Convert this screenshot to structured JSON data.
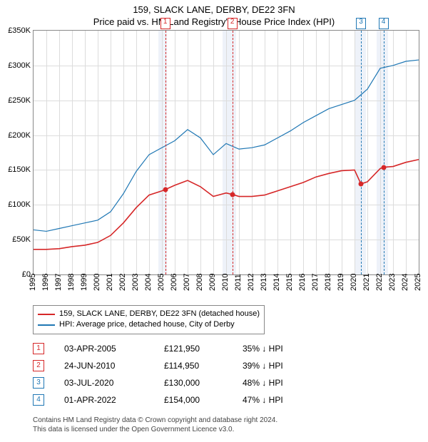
{
  "header": {
    "title": "159, SLACK LANE, DERBY, DE22 3FN",
    "subtitle": "Price paid vs. HM Land Registry's House Price Index (HPI)"
  },
  "chart": {
    "type": "line",
    "background_color": "#ffffff",
    "grid_color": "#dcdcdc",
    "axis_color": "#888888",
    "label_fontsize": 11,
    "y": {
      "min": 0,
      "max": 350000,
      "tick_step": 50000,
      "tick_labels": [
        "£0",
        "£50K",
        "£100K",
        "£150K",
        "£200K",
        "£250K",
        "£300K",
        "£350K"
      ]
    },
    "x": {
      "min": 1995,
      "max": 2025,
      "tick_step": 1,
      "tick_labels": [
        "1995",
        "1996",
        "1997",
        "1998",
        "1999",
        "2000",
        "2001",
        "2002",
        "2003",
        "2004",
        "2005",
        "2006",
        "2007",
        "2008",
        "2009",
        "2010",
        "2011",
        "2012",
        "2013",
        "2014",
        "2015",
        "2016",
        "2017",
        "2018",
        "2019",
        "2020",
        "2021",
        "2022",
        "2023",
        "2024",
        "2025"
      ]
    },
    "highlight_bands": [
      {
        "from": 2004.7,
        "to": 2005.4,
        "color": "#eef2f9"
      },
      {
        "from": 2009.7,
        "to": 2010.8,
        "color": "#eef2f9"
      },
      {
        "from": 2020.0,
        "to": 2020.9,
        "color": "#eef2f9"
      },
      {
        "from": 2021.7,
        "to": 2022.6,
        "color": "#eef2f9"
      }
    ],
    "series": [
      {
        "name": "property",
        "label": "159, SLACK LANE, DERBY, DE22 3FN (detached house)",
        "color": "#d62728",
        "line_width": 1.6,
        "points": [
          [
            1995,
            36000
          ],
          [
            1996,
            36000
          ],
          [
            1997,
            37000
          ],
          [
            1998,
            40000
          ],
          [
            1999,
            42000
          ],
          [
            2000,
            46000
          ],
          [
            2001,
            56000
          ],
          [
            2002,
            74000
          ],
          [
            2003,
            96000
          ],
          [
            2004,
            114000
          ],
          [
            2005,
            120000
          ],
          [
            2005.26,
            121950
          ],
          [
            2006,
            128000
          ],
          [
            2007,
            135000
          ],
          [
            2008,
            126000
          ],
          [
            2009,
            112000
          ],
          [
            2010,
            117000
          ],
          [
            2010.48,
            114950
          ],
          [
            2011,
            112000
          ],
          [
            2012,
            112000
          ],
          [
            2013,
            114000
          ],
          [
            2014,
            120000
          ],
          [
            2015,
            126000
          ],
          [
            2016,
            132000
          ],
          [
            2017,
            140000
          ],
          [
            2018,
            145000
          ],
          [
            2019,
            149000
          ],
          [
            2020,
            150000
          ],
          [
            2020.5,
            130000
          ],
          [
            2021,
            133000
          ],
          [
            2022,
            152000
          ],
          [
            2022.25,
            154000
          ],
          [
            2023,
            155000
          ],
          [
            2024,
            161000
          ],
          [
            2025,
            165000
          ]
        ]
      },
      {
        "name": "hpi",
        "label": "HPI: Average price, detached house, City of Derby",
        "color": "#1f77b4",
        "line_width": 1.2,
        "points": [
          [
            1995,
            64000
          ],
          [
            1996,
            62000
          ],
          [
            1997,
            66000
          ],
          [
            1998,
            70000
          ],
          [
            1999,
            74000
          ],
          [
            2000,
            78000
          ],
          [
            2001,
            90000
          ],
          [
            2002,
            116000
          ],
          [
            2003,
            148000
          ],
          [
            2004,
            172000
          ],
          [
            2005,
            182000
          ],
          [
            2006,
            192000
          ],
          [
            2007,
            208000
          ],
          [
            2008,
            196000
          ],
          [
            2009,
            172000
          ],
          [
            2010,
            188000
          ],
          [
            2011,
            180000
          ],
          [
            2012,
            182000
          ],
          [
            2013,
            186000
          ],
          [
            2014,
            196000
          ],
          [
            2015,
            206000
          ],
          [
            2016,
            218000
          ],
          [
            2017,
            228000
          ],
          [
            2018,
            238000
          ],
          [
            2019,
            244000
          ],
          [
            2020,
            250000
          ],
          [
            2021,
            266000
          ],
          [
            2022,
            296000
          ],
          [
            2023,
            300000
          ],
          [
            2024,
            306000
          ],
          [
            2025,
            308000
          ]
        ]
      }
    ],
    "sale_points": [
      {
        "x": 2005.26,
        "y": 121950,
        "color": "#d62728"
      },
      {
        "x": 2010.48,
        "y": 114950,
        "color": "#d62728"
      },
      {
        "x": 2020.5,
        "y": 130000,
        "color": "#d62728"
      },
      {
        "x": 2022.25,
        "y": 154000,
        "color": "#d62728"
      }
    ],
    "event_markers": [
      {
        "n": "1",
        "x": 2005.26,
        "color": "#d62728"
      },
      {
        "n": "2",
        "x": 2010.48,
        "color": "#d62728"
      },
      {
        "n": "3",
        "x": 2020.5,
        "color": "#1f77b4"
      },
      {
        "n": "4",
        "x": 2022.25,
        "color": "#1f77b4"
      }
    ]
  },
  "legend": [
    {
      "color": "#d62728",
      "label": "159, SLACK LANE, DERBY, DE22 3FN (detached house)"
    },
    {
      "color": "#1f77b4",
      "label": "HPI: Average price, detached house, City of Derby"
    }
  ],
  "transactions": [
    {
      "n": "1",
      "color": "#d62728",
      "date": "03-APR-2005",
      "price": "£121,950",
      "delta": "35% ↓ HPI"
    },
    {
      "n": "2",
      "color": "#d62728",
      "date": "24-JUN-2010",
      "price": "£114,950",
      "delta": "39% ↓ HPI"
    },
    {
      "n": "3",
      "color": "#1f77b4",
      "date": "03-JUL-2020",
      "price": "£130,000",
      "delta": "48% ↓ HPI"
    },
    {
      "n": "4",
      "color": "#1f77b4",
      "date": "01-APR-2022",
      "price": "£154,000",
      "delta": "47% ↓ HPI"
    }
  ],
  "footnote": {
    "line1": "Contains HM Land Registry data © Crown copyright and database right 2024.",
    "line2": "This data is licensed under the Open Government Licence v3.0."
  }
}
